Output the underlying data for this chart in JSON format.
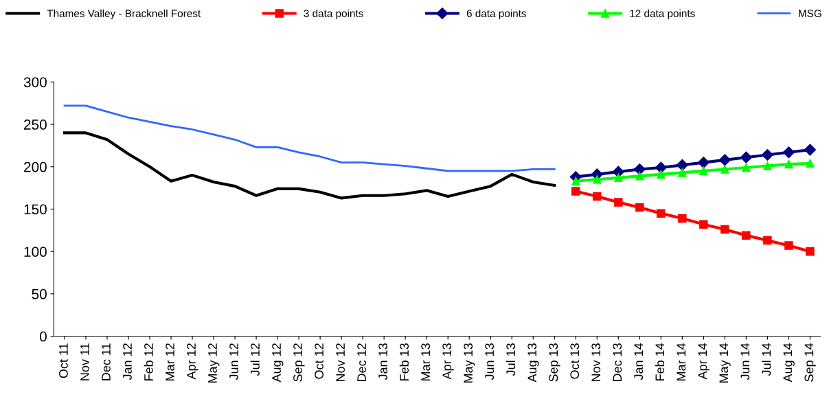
{
  "chart_data": {
    "type": "line",
    "categories": [
      "Oct 11",
      "Nov 11",
      "Dec 11",
      "Jan 12",
      "Feb 12",
      "Mar 12",
      "Apr 12",
      "May 12",
      "Jun 12",
      "Jul 12",
      "Aug 12",
      "Sep 12",
      "Oct 12",
      "Nov 12",
      "Dec 12",
      "Jan 13",
      "Feb 13",
      "Mar 13",
      "Apr 13",
      "May 13",
      "Jun 13",
      "Jul 13",
      "Aug 13",
      "Sep 13",
      "Oct 13",
      "Nov 13",
      "Dec 13",
      "Jan 14",
      "Feb 14",
      "Mar 14",
      "Apr 14",
      "May 14",
      "Jun 14",
      "Jul 14",
      "Aug 14",
      "Sep 14"
    ],
    "ylim": [
      0,
      300
    ],
    "yticks": [
      0,
      50,
      100,
      150,
      200,
      250,
      300
    ],
    "grid": false,
    "legend": "top",
    "series": [
      {
        "name": "Thames Valley - Bracknell Forest",
        "color": "#000000",
        "marker": "none",
        "values": [
          240,
          240,
          232,
          215,
          200,
          183,
          190,
          182,
          177,
          166,
          174,
          174,
          170,
          163,
          166,
          166,
          168,
          172,
          165,
          171,
          177,
          191,
          182,
          178,
          null,
          null,
          null,
          null,
          null,
          null,
          null,
          null,
          null,
          null,
          null,
          null
        ]
      },
      {
        "name": "3 data points",
        "color": "#ff0000",
        "marker": "square",
        "values": [
          null,
          null,
          null,
          null,
          null,
          null,
          null,
          null,
          null,
          null,
          null,
          null,
          null,
          null,
          null,
          null,
          null,
          null,
          null,
          null,
          null,
          null,
          null,
          null,
          171,
          165,
          158,
          152,
          145,
          139,
          132,
          126,
          119,
          113,
          107,
          100
        ]
      },
      {
        "name": "6 data points",
        "color": "#000080",
        "marker": "diamond",
        "values": [
          null,
          null,
          null,
          null,
          null,
          null,
          null,
          null,
          null,
          null,
          null,
          null,
          null,
          null,
          null,
          null,
          null,
          null,
          null,
          null,
          null,
          null,
          null,
          null,
          188,
          191,
          194,
          197,
          199,
          202,
          205,
          208,
          211,
          214,
          217,
          220
        ]
      },
      {
        "name": "12 data points",
        "color": "#00ff00",
        "marker": "triangle",
        "values": [
          null,
          null,
          null,
          null,
          null,
          null,
          null,
          null,
          null,
          null,
          null,
          null,
          null,
          null,
          null,
          null,
          null,
          null,
          null,
          null,
          null,
          null,
          null,
          null,
          183,
          185,
          187,
          189,
          191,
          193,
          195,
          197,
          199,
          201,
          203,
          204
        ]
      },
      {
        "name": "MSG",
        "color": "#3366ff",
        "marker": "none",
        "values": [
          272,
          272,
          265,
          258,
          253,
          248,
          244,
          238,
          232,
          223,
          223,
          217,
          212,
          205,
          205,
          203,
          201,
          198,
          195,
          195,
          195,
          195,
          197,
          197,
          null,
          null,
          null,
          null,
          null,
          null,
          null,
          null,
          null,
          null,
          null,
          null
        ]
      }
    ]
  }
}
